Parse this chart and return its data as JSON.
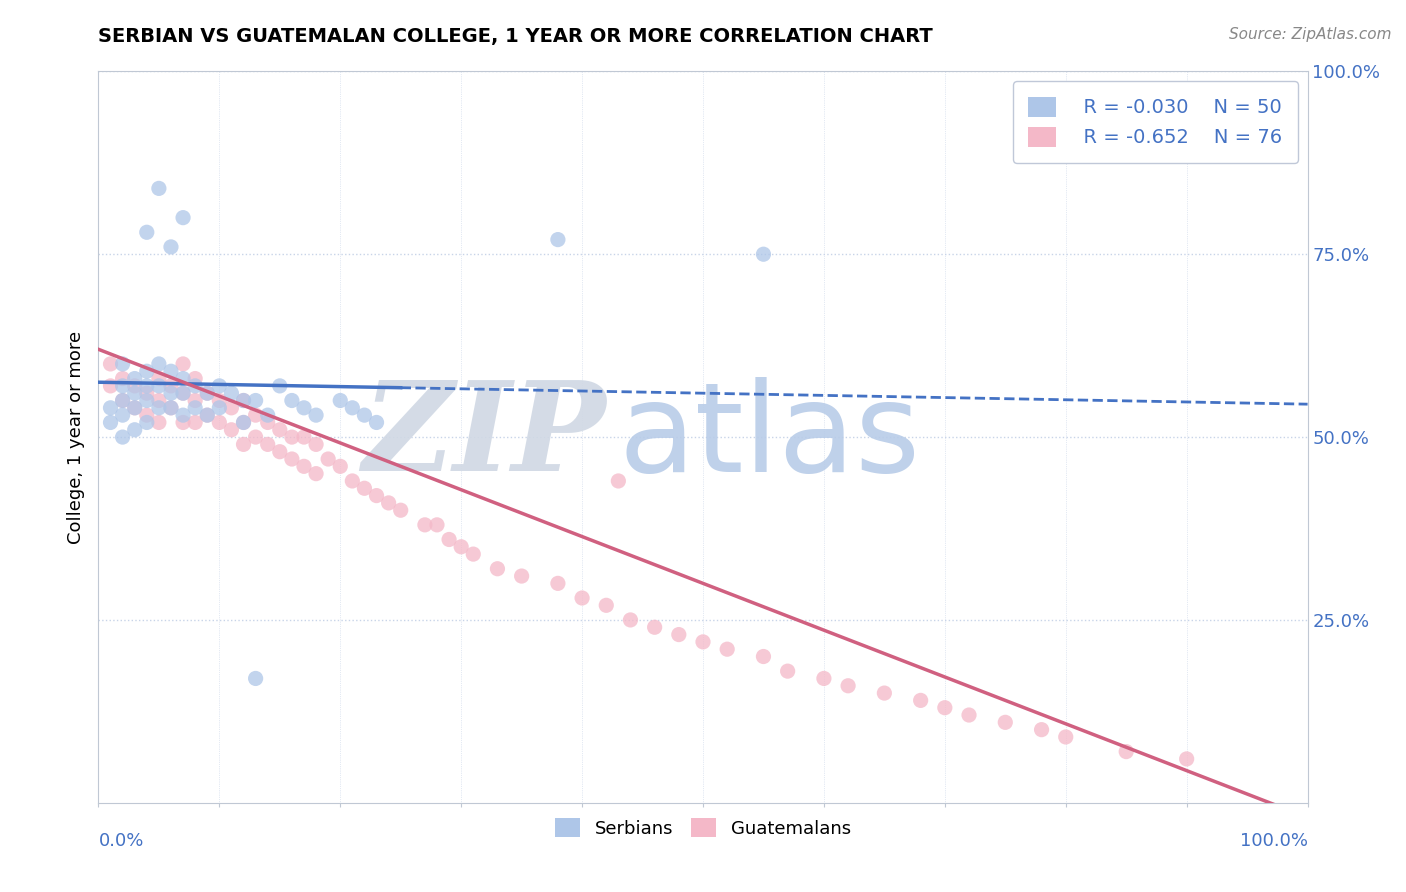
{
  "title": "SERBIAN VS GUATEMALAN COLLEGE, 1 YEAR OR MORE CORRELATION CHART",
  "source": "Source: ZipAtlas.com",
  "ylabel": "College, 1 year or more",
  "xlim": [
    0.0,
    1.0
  ],
  "ylim": [
    0.0,
    1.0
  ],
  "yticks": [
    0.25,
    0.5,
    0.75,
    1.0
  ],
  "ytick_labels": [
    "25.0%",
    "50.0%",
    "75.0%",
    "100.0%"
  ],
  "serbian_R": "-0.030",
  "serbian_N": "50",
  "guatemalan_R": "-0.652",
  "guatemalan_N": "76",
  "serbian_color": "#aec6e8",
  "guatemalan_color": "#f4b8c8",
  "serbian_line_color": "#4472c4",
  "guatemalan_line_color": "#d06080",
  "legend_text_color": "#4472c4",
  "watermark_zip": "ZIP",
  "watermark_atlas": "atlas",
  "background_color": "#ffffff",
  "grid_color": "#c8d4e8",
  "serb_x": [
    0.01,
    0.01,
    0.02,
    0.02,
    0.02,
    0.02,
    0.02,
    0.03,
    0.03,
    0.03,
    0.03,
    0.04,
    0.04,
    0.04,
    0.04,
    0.05,
    0.05,
    0.05,
    0.06,
    0.06,
    0.06,
    0.07,
    0.07,
    0.07,
    0.08,
    0.08,
    0.09,
    0.09,
    0.1,
    0.1,
    0.11,
    0.12,
    0.12,
    0.13,
    0.14,
    0.15,
    0.16,
    0.17,
    0.18,
    0.2,
    0.21,
    0.22,
    0.23,
    0.04,
    0.05,
    0.06,
    0.07,
    0.38,
    0.55,
    0.13
  ],
  "serb_y": [
    0.54,
    0.52,
    0.6,
    0.57,
    0.55,
    0.53,
    0.5,
    0.58,
    0.56,
    0.54,
    0.51,
    0.59,
    0.57,
    0.55,
    0.52,
    0.6,
    0.57,
    0.54,
    0.59,
    0.56,
    0.54,
    0.58,
    0.56,
    0.53,
    0.57,
    0.54,
    0.56,
    0.53,
    0.57,
    0.54,
    0.56,
    0.55,
    0.52,
    0.55,
    0.53,
    0.57,
    0.55,
    0.54,
    0.53,
    0.55,
    0.54,
    0.53,
    0.52,
    0.78,
    0.84,
    0.76,
    0.8,
    0.77,
    0.75,
    0.17
  ],
  "guat_x": [
    0.01,
    0.01,
    0.02,
    0.02,
    0.03,
    0.03,
    0.04,
    0.04,
    0.05,
    0.05,
    0.05,
    0.06,
    0.06,
    0.07,
    0.07,
    0.07,
    0.08,
    0.08,
    0.08,
    0.09,
    0.09,
    0.1,
    0.1,
    0.11,
    0.11,
    0.12,
    0.12,
    0.12,
    0.13,
    0.13,
    0.14,
    0.14,
    0.15,
    0.15,
    0.16,
    0.16,
    0.17,
    0.17,
    0.18,
    0.18,
    0.19,
    0.2,
    0.21,
    0.22,
    0.23,
    0.24,
    0.25,
    0.27,
    0.28,
    0.29,
    0.3,
    0.31,
    0.33,
    0.35,
    0.38,
    0.4,
    0.42,
    0.44,
    0.46,
    0.48,
    0.5,
    0.52,
    0.55,
    0.57,
    0.6,
    0.62,
    0.65,
    0.68,
    0.7,
    0.72,
    0.75,
    0.78,
    0.8,
    0.85,
    0.9,
    0.43
  ],
  "guat_y": [
    0.6,
    0.57,
    0.58,
    0.55,
    0.57,
    0.54,
    0.56,
    0.53,
    0.58,
    0.55,
    0.52,
    0.57,
    0.54,
    0.6,
    0.56,
    0.52,
    0.58,
    0.55,
    0.52,
    0.56,
    0.53,
    0.55,
    0.52,
    0.54,
    0.51,
    0.55,
    0.52,
    0.49,
    0.53,
    0.5,
    0.52,
    0.49,
    0.51,
    0.48,
    0.5,
    0.47,
    0.5,
    0.46,
    0.49,
    0.45,
    0.47,
    0.46,
    0.44,
    0.43,
    0.42,
    0.41,
    0.4,
    0.38,
    0.38,
    0.36,
    0.35,
    0.34,
    0.32,
    0.31,
    0.3,
    0.28,
    0.27,
    0.25,
    0.24,
    0.23,
    0.22,
    0.21,
    0.2,
    0.18,
    0.17,
    0.16,
    0.15,
    0.14,
    0.13,
    0.12,
    0.11,
    0.1,
    0.09,
    0.07,
    0.06,
    0.44
  ],
  "serb_line_x0": 0.0,
  "serb_line_x1": 1.0,
  "serb_line_y0": 0.575,
  "serb_line_y1": 0.545,
  "guat_line_x0": 0.0,
  "guat_line_x1": 1.0,
  "guat_line_y0": 0.62,
  "guat_line_y1": -0.02
}
